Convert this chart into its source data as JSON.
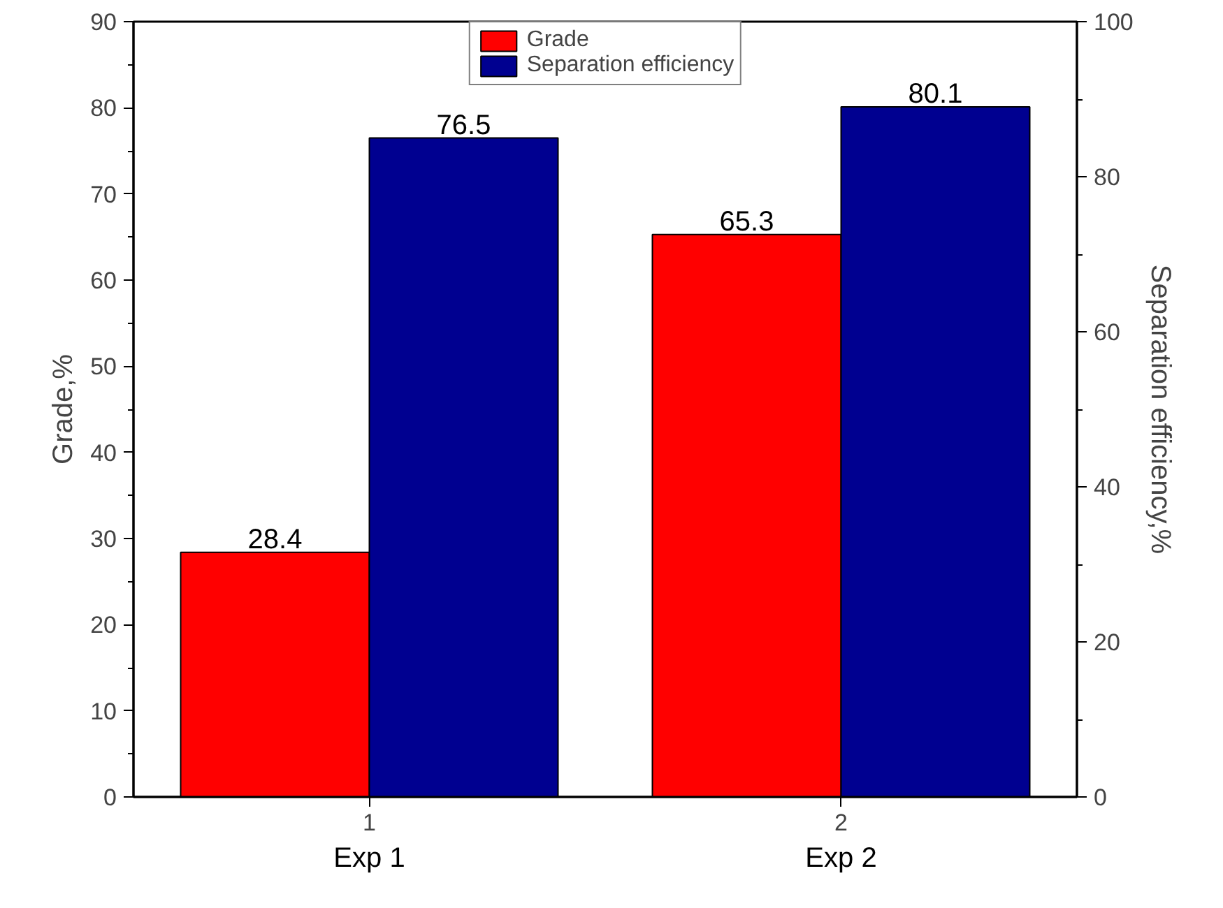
{
  "chart_data": {
    "type": "bar",
    "x": [
      1,
      2
    ],
    "xlim": [
      0.5,
      2.5
    ],
    "xticks": [
      1,
      2
    ],
    "ylabel": "Grade,%",
    "ylim": [
      0,
      90
    ],
    "yticks": [
      0,
      10,
      20,
      30,
      40,
      50,
      60,
      70,
      80,
      90
    ],
    "y2label": "Separation efficiency,%",
    "y2lim": [
      0,
      100
    ],
    "y2ticks": [
      0,
      20,
      40,
      60,
      80,
      100
    ],
    "series": [
      {
        "name": "Grade",
        "color": "#ff0000",
        "values": [
          28.4,
          65.3
        ]
      },
      {
        "name": "Separation efficiency",
        "color": "#000090",
        "values": [
          76.5,
          80.1
        ]
      }
    ],
    "data_labels": true,
    "legend": "top",
    "grid": false,
    "annotations": [
      "Exp 1",
      "Exp 2"
    ]
  }
}
